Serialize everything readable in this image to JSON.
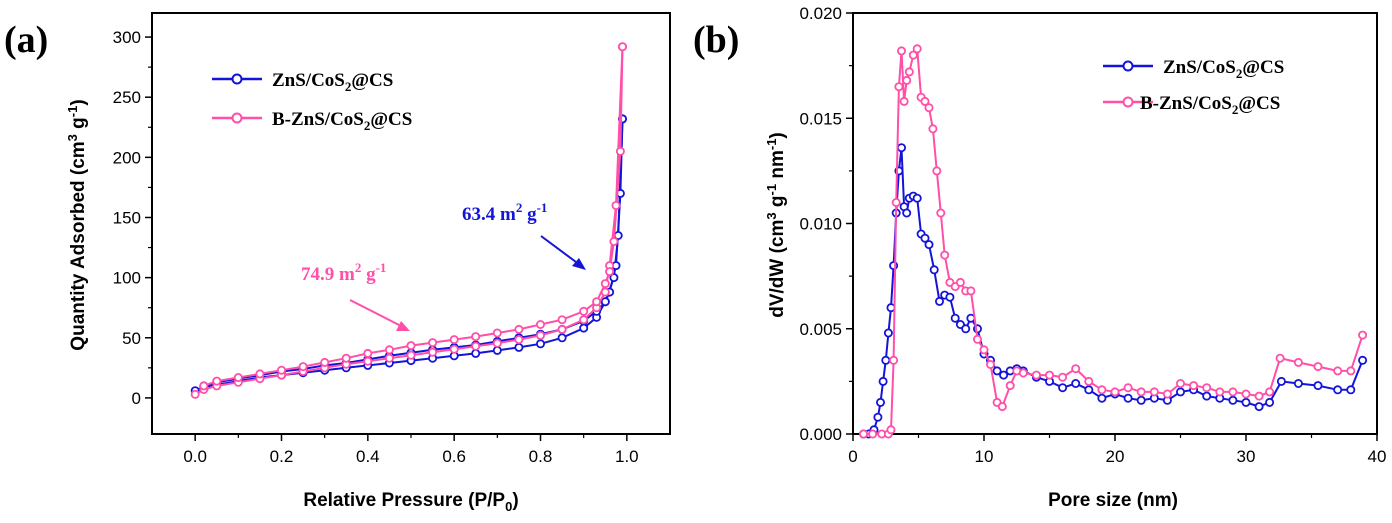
{
  "colors": {
    "series1": "#1414d8",
    "series2": "#ff4fa8",
    "axis": "#000000",
    "background": "#ffffff"
  },
  "chart_data": [
    {
      "panel": "(a)",
      "type": "line",
      "xlabel": "Relative Pressure (P/P",
      "xlabel_sub": "0",
      "xlabel_tail": ")",
      "ylabel": "Quantity Adsorbed (cm",
      "ylabel_sup": "3",
      "ylabel_mid": " g",
      "ylabel_sup2": "-1",
      "ylabel_tail": ")",
      "xlim": [
        -0.1,
        1.1
      ],
      "ylim": [
        -30,
        320
      ],
      "xticks": [
        "0.0",
        "0.2",
        "0.4",
        "0.6",
        "0.8",
        "1.0"
      ],
      "yticks": [
        "0",
        "50",
        "100",
        "150",
        "200",
        "250",
        "300"
      ],
      "legend_position": "top-left",
      "annotations": [
        {
          "text": "63.4 m",
          "sup": "2",
          "tail": " g",
          "sup2": "-1",
          "color": "#1414d8",
          "series": "ZnS/CoS2@CS"
        },
        {
          "text": "74.9 m",
          "sup": "2",
          "tail": " g",
          "sup2": "-1",
          "color": "#ff4fa8",
          "series": "B-ZnS/CoS2@CS"
        }
      ],
      "series": [
        {
          "name": "ZnS/CoS2@CS",
          "name_main": "ZnS/CoS",
          "name_sub": "2",
          "name_tail": "@CS",
          "color": "#1414d8",
          "adsorption": [
            [
              0.0,
              6
            ],
            [
              0.02,
              9
            ],
            [
              0.05,
              11
            ],
            [
              0.1,
              14
            ],
            [
              0.15,
              17
            ],
            [
              0.2,
              19
            ],
            [
              0.25,
              21
            ],
            [
              0.3,
              23
            ],
            [
              0.35,
              25
            ],
            [
              0.4,
              27
            ],
            [
              0.45,
              29
            ],
            [
              0.5,
              31
            ],
            [
              0.55,
              33
            ],
            [
              0.6,
              35
            ],
            [
              0.65,
              37
            ],
            [
              0.7,
              39.5
            ],
            [
              0.75,
              42
            ],
            [
              0.8,
              45
            ],
            [
              0.85,
              50
            ],
            [
              0.9,
              58
            ],
            [
              0.93,
              67
            ],
            [
              0.95,
              80
            ],
            [
              0.97,
              100
            ],
            [
              0.98,
              135
            ],
            [
              0.99,
              232
            ]
          ],
          "desorption": [
            [
              0.99,
              232
            ],
            [
              0.985,
              170
            ],
            [
              0.975,
              110
            ],
            [
              0.96,
              88
            ],
            [
              0.95,
              80
            ],
            [
              0.93,
              72
            ],
            [
              0.9,
              64
            ],
            [
              0.85,
              57
            ],
            [
              0.8,
              53
            ],
            [
              0.75,
              50
            ],
            [
              0.7,
              47
            ],
            [
              0.65,
              44
            ],
            [
              0.6,
              42
            ],
            [
              0.55,
              40
            ],
            [
              0.5,
              37.5
            ],
            [
              0.45,
              35
            ],
            [
              0.4,
              32
            ],
            [
              0.35,
              29
            ],
            [
              0.3,
              27
            ],
            [
              0.25,
              24
            ],
            [
              0.2,
              22
            ],
            [
              0.15,
              19
            ],
            [
              0.1,
              16
            ],
            [
              0.05,
              13
            ],
            [
              0.02,
              10
            ]
          ]
        },
        {
          "name": "B-ZnS/CoS2@CS",
          "name_main": "B-ZnS/CoS",
          "name_sub": "2",
          "name_tail": "@CS",
          "color": "#ff4fa8",
          "adsorption": [
            [
              0.0,
              3
            ],
            [
              0.02,
              7
            ],
            [
              0.05,
              10
            ],
            [
              0.1,
              13
            ],
            [
              0.15,
              16
            ],
            [
              0.2,
              19
            ],
            [
              0.25,
              22
            ],
            [
              0.3,
              25
            ],
            [
              0.35,
              28
            ],
            [
              0.4,
              30.5
            ],
            [
              0.45,
              33
            ],
            [
              0.5,
              35.5
            ],
            [
              0.55,
              38
            ],
            [
              0.6,
              40.5
            ],
            [
              0.65,
              43
            ],
            [
              0.7,
              45.5
            ],
            [
              0.75,
              48.5
            ],
            [
              0.8,
              52
            ],
            [
              0.85,
              57
            ],
            [
              0.9,
              65
            ],
            [
              0.93,
              75
            ],
            [
              0.95,
              88
            ],
            [
              0.96,
              110
            ],
            [
              0.975,
              160
            ],
            [
              0.99,
              292
            ]
          ],
          "desorption": [
            [
              0.99,
              292
            ],
            [
              0.985,
              205
            ],
            [
              0.97,
              130
            ],
            [
              0.96,
              105
            ],
            [
              0.95,
              95
            ],
            [
              0.93,
              80
            ],
            [
              0.9,
              72
            ],
            [
              0.85,
              65
            ],
            [
              0.8,
              61
            ],
            [
              0.75,
              57
            ],
            [
              0.7,
              54
            ],
            [
              0.65,
              51
            ],
            [
              0.6,
              48.5
            ],
            [
              0.55,
              46
            ],
            [
              0.5,
              43.5
            ],
            [
              0.45,
              40
            ],
            [
              0.4,
              37
            ],
            [
              0.35,
              33
            ],
            [
              0.3,
              29.5
            ],
            [
              0.25,
              26
            ],
            [
              0.2,
              23
            ],
            [
              0.15,
              20
            ],
            [
              0.1,
              17
            ],
            [
              0.05,
              14
            ],
            [
              0.02,
              10
            ]
          ]
        }
      ]
    },
    {
      "panel": "(b)",
      "type": "line",
      "xlabel": "Pore size (nm)",
      "ylabel": "dV/dW (cm",
      "ylabel_sup": "3",
      "ylabel_mid": " g",
      "ylabel_sup2": "-1",
      "ylabel_mid2": " nm",
      "ylabel_sup3": "-1",
      "ylabel_tail": ")",
      "xlim": [
        0,
        40
      ],
      "ylim": [
        0,
        0.02
      ],
      "xticks": [
        "0",
        "10",
        "20",
        "30",
        "40"
      ],
      "yticks": [
        "0.000",
        "0.005",
        "0.010",
        "0.015",
        "0.020"
      ],
      "legend_position": "top-right",
      "series": [
        {
          "name": "ZnS/CoS2@CS",
          "name_main": "ZnS/CoS",
          "name_sub": "2",
          "name_tail": "@CS",
          "color": "#1414d8",
          "points": [
            [
              0.8,
              0
            ],
            [
              1.2,
              0
            ],
            [
              1.6,
              0.0002
            ],
            [
              1.9,
              0.0008
            ],
            [
              2.1,
              0.0015
            ],
            [
              2.3,
              0.0025
            ],
            [
              2.5,
              0.0035
            ],
            [
              2.7,
              0.0048
            ],
            [
              2.9,
              0.006
            ],
            [
              3.1,
              0.008
            ],
            [
              3.3,
              0.0105
            ],
            [
              3.5,
              0.0125
            ],
            [
              3.7,
              0.0136
            ],
            [
              3.9,
              0.0108
            ],
            [
              4.1,
              0.0105
            ],
            [
              4.3,
              0.0112
            ],
            [
              4.6,
              0.0113
            ],
            [
              4.9,
              0.0112
            ],
            [
              5.2,
              0.0095
            ],
            [
              5.5,
              0.0093
            ],
            [
              5.8,
              0.009
            ],
            [
              6.2,
              0.0078
            ],
            [
              6.6,
              0.0063
            ],
            [
              7.0,
              0.0066
            ],
            [
              7.4,
              0.0065
            ],
            [
              7.8,
              0.0055
            ],
            [
              8.2,
              0.0052
            ],
            [
              8.6,
              0.005
            ],
            [
              9.0,
              0.0055
            ],
            [
              9.5,
              0.005
            ],
            [
              10.0,
              0.0038
            ],
            [
              10.5,
              0.0035
            ],
            [
              11.0,
              0.003
            ],
            [
              11.5,
              0.0028
            ],
            [
              12.0,
              0.003
            ],
            [
              12.5,
              0.0031
            ],
            [
              13.0,
              0.003
            ],
            [
              14.0,
              0.0027
            ],
            [
              15.0,
              0.0025
            ],
            [
              16.0,
              0.0022
            ],
            [
              17.0,
              0.0024
            ],
            [
              18.0,
              0.0021
            ],
            [
              19.0,
              0.0017
            ],
            [
              20.0,
              0.0019
            ],
            [
              21.0,
              0.0017
            ],
            [
              22.0,
              0.0016
            ],
            [
              23.0,
              0.0017
            ],
            [
              24.0,
              0.0016
            ],
            [
              25.0,
              0.002
            ],
            [
              26.0,
              0.0021
            ],
            [
              27.0,
              0.0018
            ],
            [
              28.0,
              0.0017
            ],
            [
              29.0,
              0.0016
            ],
            [
              30.0,
              0.0015
            ],
            [
              31.0,
              0.0013
            ],
            [
              31.8,
              0.0015
            ],
            [
              32.7,
              0.0025
            ],
            [
              34.0,
              0.0024
            ],
            [
              35.5,
              0.0023
            ],
            [
              37.0,
              0.0021
            ],
            [
              38.0,
              0.0021
            ],
            [
              38.9,
              0.0035
            ]
          ]
        },
        {
          "name": "B-ZnS/CoS2@CS",
          "name_main": "B-ZnS/CoS",
          "name_sub": "2",
          "name_tail": "@CS",
          "color": "#ff4fa8",
          "points": [
            [
              0.8,
              0
            ],
            [
              1.5,
              0
            ],
            [
              2.2,
              0
            ],
            [
              2.7,
              0
            ],
            [
              2.9,
              0.0002
            ],
            [
              3.1,
              0.0035
            ],
            [
              3.3,
              0.011
            ],
            [
              3.5,
              0.0165
            ],
            [
              3.7,
              0.0182
            ],
            [
              3.9,
              0.0158
            ],
            [
              4.1,
              0.0168
            ],
            [
              4.3,
              0.0172
            ],
            [
              4.6,
              0.018
            ],
            [
              4.9,
              0.0183
            ],
            [
              5.2,
              0.016
            ],
            [
              5.5,
              0.0158
            ],
            [
              5.8,
              0.0155
            ],
            [
              6.1,
              0.0145
            ],
            [
              6.4,
              0.0125
            ],
            [
              6.7,
              0.0105
            ],
            [
              7.0,
              0.0085
            ],
            [
              7.4,
              0.0072
            ],
            [
              7.8,
              0.007
            ],
            [
              8.2,
              0.0072
            ],
            [
              8.6,
              0.0068
            ],
            [
              9.0,
              0.0068
            ],
            [
              9.5,
              0.0045
            ],
            [
              10.0,
              0.004
            ],
            [
              10.5,
              0.0033
            ],
            [
              11.0,
              0.0015
            ],
            [
              11.4,
              0.0013
            ],
            [
              12.0,
              0.0023
            ],
            [
              12.5,
              0.003
            ],
            [
              13.0,
              0.0029
            ],
            [
              14.0,
              0.0028
            ],
            [
              15.0,
              0.0028
            ],
            [
              16.0,
              0.0027
            ],
            [
              17.0,
              0.0031
            ],
            [
              18.0,
              0.0025
            ],
            [
              19.0,
              0.0021
            ],
            [
              20.0,
              0.002
            ],
            [
              21.0,
              0.0022
            ],
            [
              22.0,
              0.002
            ],
            [
              23.0,
              0.002
            ],
            [
              24.0,
              0.0019
            ],
            [
              25.0,
              0.0024
            ],
            [
              26.0,
              0.0023
            ],
            [
              27.0,
              0.0022
            ],
            [
              28.0,
              0.002
            ],
            [
              29.0,
              0.002
            ],
            [
              30.0,
              0.0019
            ],
            [
              31.0,
              0.0018
            ],
            [
              31.8,
              0.002
            ],
            [
              32.6,
              0.0036
            ],
            [
              34.0,
              0.0034
            ],
            [
              35.5,
              0.0032
            ],
            [
              37.0,
              0.003
            ],
            [
              38.0,
              0.003
            ],
            [
              38.9,
              0.0047
            ]
          ]
        }
      ]
    }
  ]
}
